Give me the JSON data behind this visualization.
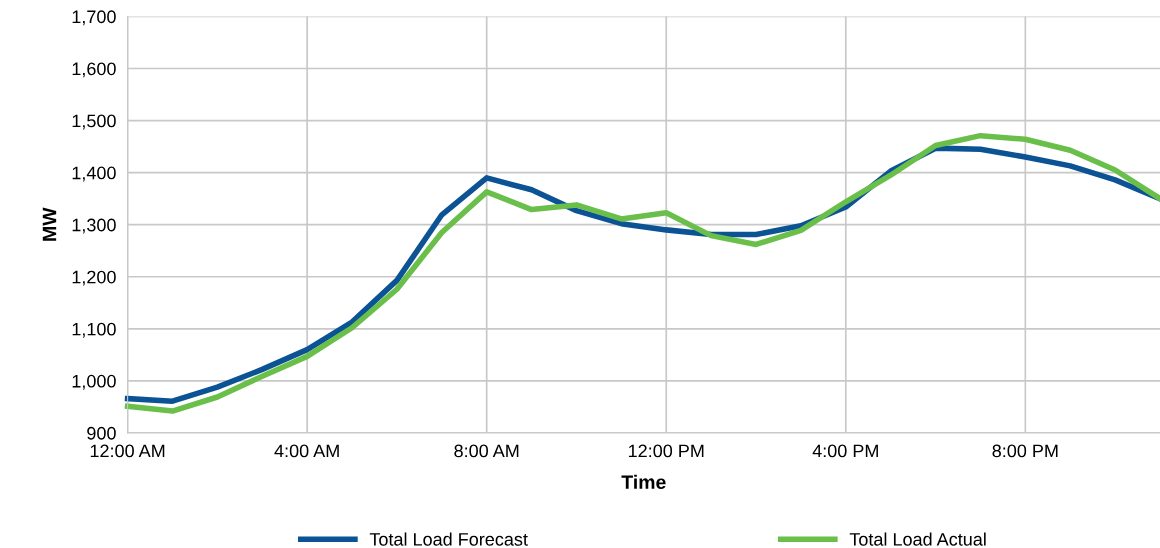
{
  "chart_data": {
    "type": "line",
    "xlabel": "Time",
    "ylabel": "MW",
    "x": [
      0,
      1,
      2,
      3,
      4,
      5,
      6,
      7,
      8,
      9,
      10,
      11,
      12,
      13,
      14,
      15,
      16,
      17,
      18,
      19,
      20,
      21,
      22,
      23
    ],
    "series": [
      {
        "name": "Total Load Forecast",
        "color": "#0b5394",
        "values": [
          966,
          961,
          988,
          1022,
          1060,
          1113,
          1193,
          1319,
          1390,
          1367,
          1327,
          1302,
          1290,
          1281,
          1281,
          1298,
          1334,
          1403,
          1447,
          1445,
          1430,
          1413,
          1386,
          1350
        ]
      },
      {
        "name": "Total Load Actual",
        "color": "#6abf4b",
        "values": [
          951,
          942,
          969,
          1009,
          1047,
          1102,
          1176,
          1285,
          1363,
          1329,
          1338,
          1311,
          1323,
          1279,
          1262,
          1289,
          1344,
          1395,
          1452,
          1471,
          1464,
          1443,
          1405,
          1350
        ]
      }
    ],
    "xlim": [
      0,
      23
    ],
    "xticks": [
      {
        "value": 0,
        "label": "12:00 AM"
      },
      {
        "value": 4,
        "label": "4:00 AM"
      },
      {
        "value": 8,
        "label": "8:00 AM"
      },
      {
        "value": 12,
        "label": "12:00 PM"
      },
      {
        "value": 16,
        "label": "4:00 PM"
      },
      {
        "value": 20,
        "label": "8:00 PM"
      }
    ],
    "ylim": [
      900,
      1700
    ],
    "yticks": [
      {
        "value": 900,
        "label": "900"
      },
      {
        "value": 1000,
        "label": "1,000"
      },
      {
        "value": 1100,
        "label": "1,100"
      },
      {
        "value": 1200,
        "label": "1,200"
      },
      {
        "value": 1300,
        "label": "1,300"
      },
      {
        "value": 1400,
        "label": "1,400"
      },
      {
        "value": 1500,
        "label": "1,500"
      },
      {
        "value": 1600,
        "label": "1,600"
      },
      {
        "value": 1700,
        "label": "1,700"
      }
    ],
    "grid": true,
    "legend": "bottom",
    "marker": "none",
    "line_style": "solid"
  }
}
